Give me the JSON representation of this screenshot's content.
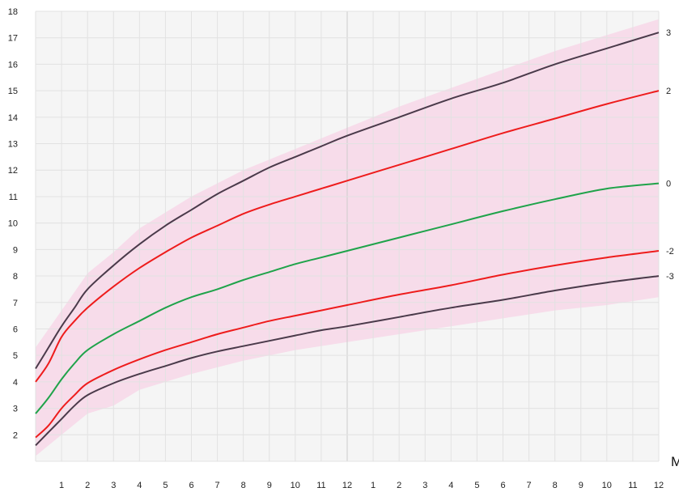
{
  "chart_data": {
    "type": "line",
    "x_tick_labels": [
      "1",
      "2",
      "3",
      "4",
      "5",
      "6",
      "7",
      "8",
      "9",
      "10",
      "11",
      "12",
      "1",
      "2",
      "3",
      "4",
      "5",
      "6",
      "7",
      "8",
      "9",
      "10",
      "11",
      "12"
    ],
    "x_unit_label": "M",
    "y_tick_labels": [
      "2",
      "3",
      "4",
      "5",
      "6",
      "7",
      "8",
      "9",
      "10",
      "11",
      "12",
      "13",
      "14",
      "15",
      "16",
      "17",
      "18"
    ],
    "xlim": [
      0,
      24
    ],
    "ylim": [
      1,
      18
    ],
    "grid": true,
    "band": {
      "color": "#f7dcea",
      "x": [
        0,
        1,
        2,
        3,
        4,
        6,
        8,
        10,
        12,
        14,
        16,
        18,
        20,
        22,
        24
      ],
      "upper": [
        5.3,
        6.7,
        8.1,
        8.9,
        9.8,
        11.0,
        12.0,
        12.8,
        13.6,
        14.4,
        15.1,
        15.8,
        16.5,
        17.1,
        17.7
      ],
      "lower": [
        1.2,
        2.0,
        2.8,
        3.1,
        3.7,
        4.3,
        4.8,
        5.2,
        5.5,
        5.8,
        6.1,
        6.4,
        6.7,
        6.9,
        7.2
      ]
    },
    "series": [
      {
        "name": "3",
        "color": "#4a3a4a",
        "x": [
          0,
          0.5,
          1,
          1.5,
          2,
          3,
          4,
          5,
          6,
          7,
          8,
          9,
          10,
          11,
          12,
          14,
          16,
          18,
          20,
          22,
          24
        ],
        "y": [
          4.5,
          5.3,
          6.1,
          6.8,
          7.5,
          8.4,
          9.2,
          9.9,
          10.5,
          11.1,
          11.6,
          12.1,
          12.5,
          12.9,
          13.3,
          14.0,
          14.7,
          15.3,
          16.0,
          16.6,
          17.2
        ]
      },
      {
        "name": "2",
        "color": "#ee1c1c",
        "x": [
          0,
          0.5,
          1,
          1.5,
          2,
          3,
          4,
          5,
          6,
          7,
          8,
          9,
          10,
          11,
          12,
          14,
          16,
          18,
          20,
          22,
          24
        ],
        "y": [
          4.0,
          4.7,
          5.7,
          6.3,
          6.8,
          7.6,
          8.3,
          8.9,
          9.45,
          9.9,
          10.35,
          10.7,
          11.0,
          11.3,
          11.6,
          12.2,
          12.8,
          13.4,
          13.95,
          14.5,
          15.0
        ]
      },
      {
        "name": "0",
        "color": "#1fa34a",
        "x": [
          0,
          0.5,
          1,
          1.5,
          2,
          3,
          4,
          5,
          6,
          7,
          8,
          9,
          10,
          11,
          12,
          14,
          16,
          18,
          20,
          22,
          24
        ],
        "y": [
          2.8,
          3.4,
          4.1,
          4.7,
          5.2,
          5.8,
          6.3,
          6.8,
          7.2,
          7.5,
          7.85,
          8.15,
          8.45,
          8.7,
          8.95,
          9.45,
          9.95,
          10.45,
          10.9,
          11.3,
          11.5
        ]
      },
      {
        "name": "-2",
        "color": "#ee1c1c",
        "x": [
          0,
          0.5,
          1,
          1.5,
          2,
          3,
          4,
          5,
          6,
          7,
          8,
          9,
          10,
          11,
          12,
          14,
          16,
          18,
          20,
          22,
          24
        ],
        "y": [
          1.9,
          2.35,
          3.0,
          3.5,
          3.95,
          4.45,
          4.85,
          5.2,
          5.5,
          5.8,
          6.05,
          6.3,
          6.5,
          6.7,
          6.9,
          7.3,
          7.65,
          8.05,
          8.4,
          8.7,
          8.95
        ]
      },
      {
        "name": "-3",
        "color": "#4a3a4a",
        "x": [
          0,
          0.5,
          1,
          1.5,
          2,
          3,
          4,
          5,
          6,
          7,
          8,
          9,
          10,
          11,
          12,
          14,
          16,
          18,
          20,
          22,
          24
        ],
        "y": [
          1.6,
          2.1,
          2.6,
          3.1,
          3.5,
          3.95,
          4.3,
          4.6,
          4.9,
          5.15,
          5.35,
          5.55,
          5.75,
          5.95,
          6.1,
          6.45,
          6.8,
          7.1,
          7.45,
          7.75,
          8.0
        ]
      }
    ]
  }
}
